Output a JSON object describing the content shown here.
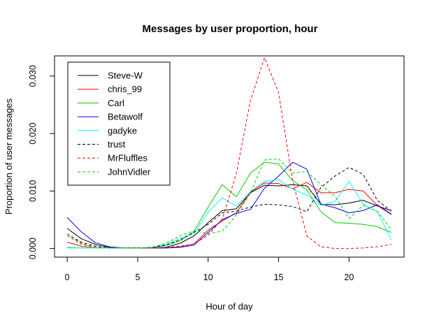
{
  "chart_data": {
    "type": "line",
    "title": "Messages by user proportion, hour",
    "xlabel": "Hour of day",
    "ylabel": "Proportion of user messages",
    "xlim": [
      -0.9,
      23.9
    ],
    "ylim": [
      -0.0015,
      0.0335
    ],
    "xticks": [
      0,
      5,
      10,
      15,
      20
    ],
    "yticks": [
      0.0,
      0.01,
      0.02,
      0.03
    ],
    "ytick_labels": [
      "0.000",
      "0.010",
      "0.020",
      "0.030"
    ],
    "legend_position": "top-left",
    "x": [
      0,
      1,
      2,
      3,
      4,
      5,
      6,
      7,
      8,
      9,
      10,
      11,
      12,
      13,
      14,
      15,
      16,
      17,
      18,
      19,
      20,
      21,
      22,
      23
    ],
    "series": [
      {
        "name": "Steve-W",
        "color": "#000000",
        "dash": "solid",
        "values": [
          0.0035,
          0.0017,
          0.0007,
          0.0002,
          0.0001,
          0.0001,
          0.0001,
          0.0002,
          0.0009,
          0.0022,
          0.0045,
          0.0066,
          0.0069,
          0.0097,
          0.011,
          0.0109,
          0.0111,
          0.0109,
          0.0077,
          0.0076,
          0.0079,
          0.0084,
          0.0074,
          0.0066
        ]
      },
      {
        "name": "chris_99",
        "color": "#ff0000",
        "dash": "solid",
        "values": [
          0.0011,
          0.0004,
          0.0001,
          0.0001,
          0.0001,
          0.0001,
          0.0001,
          0.0001,
          0.0003,
          0.0008,
          0.0032,
          0.0048,
          0.0062,
          0.0098,
          0.0114,
          0.0113,
          0.0104,
          0.0115,
          0.0097,
          0.0097,
          0.0103,
          0.01,
          0.0075,
          0.0059
        ]
      },
      {
        "name": "Carl",
        "color": "#00cd00",
        "dash": "solid",
        "values": [
          0.0002,
          0.0001,
          0.0001,
          0.0001,
          0.0001,
          0.0001,
          0.0002,
          0.0005,
          0.0013,
          0.003,
          0.0072,
          0.0111,
          0.009,
          0.0131,
          0.015,
          0.0147,
          0.0118,
          0.0102,
          0.0064,
          0.0045,
          0.0044,
          0.0042,
          0.0038,
          0.0028
        ]
      },
      {
        "name": "Betawolf",
        "color": "#0000ff",
        "dash": "solid",
        "values": [
          0.0054,
          0.0029,
          0.001,
          0.0003,
          0.0001,
          0.0001,
          0.0001,
          0.0001,
          0.0002,
          0.0006,
          0.0028,
          0.005,
          0.0061,
          0.0068,
          0.0105,
          0.0126,
          0.015,
          0.0138,
          0.0077,
          0.0071,
          0.0062,
          0.0066,
          0.0076,
          0.006
        ]
      },
      {
        "name": "gadyke",
        "color": "#00ffff",
        "dash": "solid",
        "values": [
          0.0001,
          0.0001,
          0.0001,
          0.0001,
          0.0001,
          0.0001,
          0.0002,
          0.0007,
          0.0018,
          0.0026,
          0.0063,
          0.0088,
          0.0074,
          0.0099,
          0.0117,
          0.012,
          0.0103,
          0.0093,
          0.0075,
          0.0082,
          0.0117,
          0.0077,
          0.0064,
          0.0015
        ]
      },
      {
        "name": "trust",
        "color": "#000000",
        "dash": "dashed",
        "values": [
          0.0025,
          0.0011,
          0.0004,
          0.0001,
          0.0001,
          0.0001,
          0.0002,
          0.0006,
          0.0015,
          0.0028,
          0.0042,
          0.0062,
          0.0065,
          0.0072,
          0.0077,
          0.0076,
          0.0073,
          0.0064,
          0.0106,
          0.0126,
          0.0141,
          0.0129,
          0.0084,
          0.0065
        ]
      },
      {
        "name": "MrFluffles",
        "color": "#ff0000",
        "dash": "dashed",
        "values": [
          0.0025,
          0.0009,
          0.0002,
          0.0001,
          0.0001,
          0.0001,
          0.0001,
          0.0002,
          0.0004,
          0.0008,
          0.0023,
          0.0051,
          0.013,
          0.0257,
          0.0332,
          0.0271,
          0.0117,
          0.0022,
          0.0003,
          0.0,
          0.0,
          0.0001,
          0.0003,
          0.0007
        ]
      },
      {
        "name": "JohnVidler",
        "color": "#00cd00",
        "dash": "dashed",
        "values": [
          0.0022,
          0.0007,
          0.0002,
          0.0001,
          0.0001,
          0.0001,
          0.0002,
          0.0009,
          0.0022,
          0.0031,
          0.0026,
          0.003,
          0.0058,
          0.0096,
          0.0154,
          0.0156,
          0.0131,
          0.0134,
          0.0111,
          0.0091,
          0.0052,
          0.0075,
          0.0065,
          0.0033
        ]
      }
    ]
  }
}
